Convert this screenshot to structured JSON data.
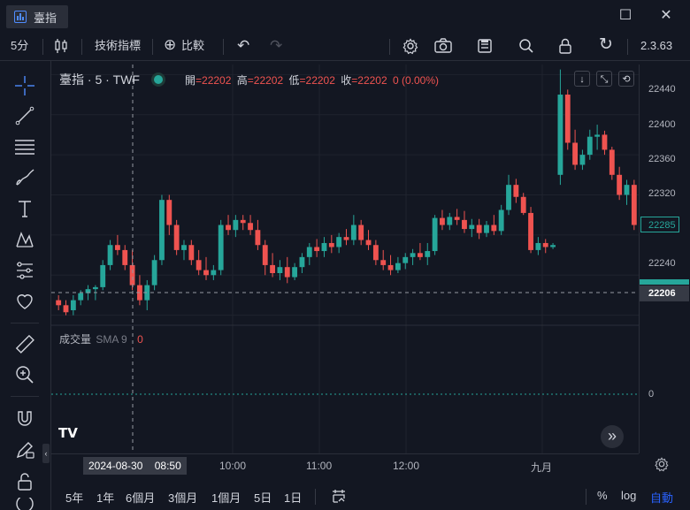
{
  "window": {
    "title": "臺指",
    "maximize_glyph": "☐",
    "close_glyph": "✕"
  },
  "toolbar": {
    "interval": "5分",
    "indicators_label": "技術指標",
    "compare_label": "比較",
    "compare_glyph": "⊕",
    "undo_glyph": "↶",
    "redo_glyph": "↷",
    "settings_glyph": "⚙",
    "search_glyph": "⌕",
    "lock_glyph": "🔒",
    "refresh_glyph": "↻",
    "version": "2.3.63"
  },
  "chart": {
    "symbol_legend": "臺指 · 5 · TWF",
    "ohlc": {
      "open_label": "開",
      "open": "=22202",
      "high_label": "高",
      "high": "=22202",
      "low_label": "低",
      "low": "=22202",
      "close_label": "收",
      "close": "=22202",
      "change": "0 (0.00%)"
    },
    "volume_label": "成交量",
    "volume_sma": "SMA 9",
    "volume_value": "0",
    "volume_axis_tick": "0",
    "price_ticks": [
      "22440",
      "22400",
      "22360",
      "22320",
      "22240"
    ],
    "price_badge_current": "22285",
    "price_badge_last": "22206",
    "time_ticks": [
      "10:00",
      "11:00",
      "12:00",
      "九月"
    ],
    "crosshair_time": "2024-08-30    08:50",
    "logo": "TV",
    "scroll_glyph": "»",
    "colors": {
      "up": "#26a69a",
      "down": "#ef5350",
      "bg": "#131722",
      "grid": "#1f232e"
    }
  },
  "chart_data": {
    "type": "candlestick",
    "ylim": [
      22190,
      22450
    ],
    "x_labels": [
      "10:00",
      "11:00",
      "12:00",
      "九月"
    ],
    "candles": [
      [
        22215,
        22220,
        22205,
        22210
      ],
      [
        22210,
        22215,
        22200,
        22203
      ],
      [
        22205,
        22220,
        22200,
        22215
      ],
      [
        22215,
        22225,
        22210,
        22222
      ],
      [
        22222,
        22230,
        22215,
        22226
      ],
      [
        22226,
        22230,
        22215,
        22228
      ],
      [
        22228,
        22255,
        22225,
        22250
      ],
      [
        22250,
        22275,
        22245,
        22270
      ],
      [
        22270,
        22280,
        22260,
        22265
      ],
      [
        22265,
        22270,
        22245,
        22250
      ],
      [
        22250,
        22265,
        22225,
        22230
      ],
      [
        22230,
        22240,
        22210,
        22215
      ],
      [
        22215,
        22235,
        22205,
        22230
      ],
      [
        22230,
        22260,
        22225,
        22255
      ],
      [
        22255,
        22320,
        22250,
        22315
      ],
      [
        22315,
        22320,
        22280,
        22290
      ],
      [
        22290,
        22295,
        22260,
        22265
      ],
      [
        22265,
        22275,
        22255,
        22270
      ],
      [
        22270,
        22275,
        22250,
        22255
      ],
      [
        22255,
        22265,
        22240,
        22245
      ],
      [
        22245,
        22258,
        22235,
        22240
      ],
      [
        22240,
        22250,
        22235,
        22245
      ],
      [
        22245,
        22295,
        22240,
        22290
      ],
      [
        22290,
        22300,
        22280,
        22285
      ],
      [
        22285,
        22300,
        22278,
        22295
      ],
      [
        22295,
        22300,
        22285,
        22292
      ],
      [
        22292,
        22300,
        22280,
        22285
      ],
      [
        22285,
        22295,
        22265,
        22270
      ],
      [
        22270,
        22275,
        22240,
        22250
      ],
      [
        22250,
        22262,
        22238,
        22242
      ],
      [
        22242,
        22255,
        22235,
        22248
      ],
      [
        22248,
        22258,
        22232,
        22238
      ],
      [
        22238,
        22252,
        22235,
        22248
      ],
      [
        22248,
        22262,
        22242,
        22258
      ],
      [
        22258,
        22272,
        22250,
        22268
      ],
      [
        22268,
        22276,
        22258,
        22264
      ],
      [
        22264,
        22278,
        22258,
        22272
      ],
      [
        22272,
        22280,
        22262,
        22268
      ],
      [
        22268,
        22282,
        22262,
        22278
      ],
      [
        22278,
        22286,
        22270,
        22275
      ],
      [
        22275,
        22300,
        22270,
        22290
      ],
      [
        22290,
        22295,
        22270,
        22275
      ],
      [
        22275,
        22285,
        22265,
        22270
      ],
      [
        22270,
        22275,
        22250,
        22255
      ],
      [
        22255,
        22265,
        22245,
        22250
      ],
      [
        22250,
        22260,
        22240,
        22245
      ],
      [
        22245,
        22258,
        22242,
        22252
      ],
      [
        22252,
        22262,
        22246,
        22258
      ],
      [
        22258,
        22266,
        22250,
        22262
      ],
      [
        22262,
        22272,
        22255,
        22258
      ],
      [
        22258,
        22272,
        22250,
        22264
      ],
      [
        22264,
        22300,
        22260,
        22297
      ],
      [
        22297,
        22305,
        22285,
        22290
      ],
      [
        22290,
        22302,
        22285,
        22298
      ],
      [
        22298,
        22306,
        22290,
        22295
      ],
      [
        22295,
        22304,
        22282,
        22286
      ],
      [
        22286,
        22296,
        22278,
        22290
      ],
      [
        22290,
        22296,
        22276,
        22282
      ],
      [
        22282,
        22294,
        22278,
        22290
      ],
      [
        22290,
        22300,
        22280,
        22284
      ],
      [
        22284,
        22310,
        22280,
        22305
      ],
      [
        22305,
        22340,
        22300,
        22330
      ],
      [
        22330,
        22336,
        22312,
        22318
      ],
      [
        22318,
        22322,
        22300,
        22302
      ],
      [
        22302,
        22308,
        22262,
        22265
      ],
      [
        22265,
        22278,
        22260,
        22272
      ],
      [
        22272,
        22276,
        22262,
        22268
      ],
      [
        22268,
        22272,
        22266,
        22270
      ],
      [
        22340,
        22445,
        22330,
        22420
      ],
      [
        22420,
        22425,
        22365,
        22372
      ],
      [
        22372,
        22385,
        22345,
        22350
      ],
      [
        22350,
        22365,
        22345,
        22360
      ],
      [
        22360,
        22385,
        22355,
        22378
      ],
      [
        22378,
        22390,
        22365,
        22380
      ],
      [
        22380,
        22384,
        22360,
        22365
      ],
      [
        22365,
        22368,
        22335,
        22340
      ],
      [
        22340,
        22348,
        22315,
        22320
      ],
      [
        22320,
        22335,
        22310,
        22330
      ],
      [
        22330,
        22335,
        22285,
        22290
      ]
    ],
    "last_price": 22206
  }
}
